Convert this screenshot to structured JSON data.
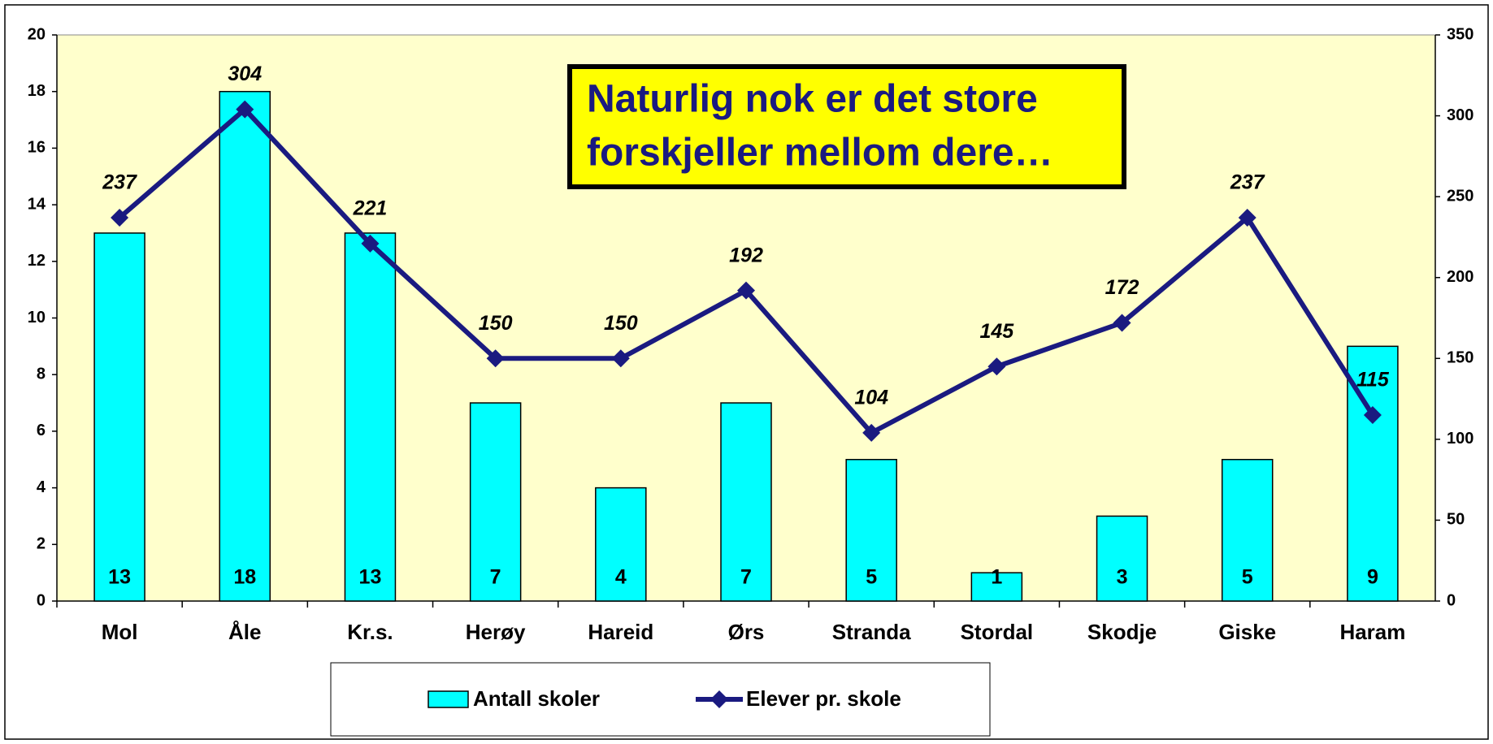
{
  "chart_data": {
    "type": "combo",
    "annotation": [
      "Naturlig nok er det store",
      "forskjeller mellom dere…"
    ],
    "categories": [
      "Mol",
      "Åle",
      "Kr.s.",
      "Herøy",
      "Hareid",
      "Ørs",
      "Stranda",
      "Stordal",
      "Skodje",
      "Giske",
      "Haram"
    ],
    "series": [
      {
        "name": "Antall skoler",
        "type": "bar",
        "axis": "y",
        "color": "#00ffff",
        "values": [
          13,
          18,
          13,
          7,
          4,
          7,
          5,
          1,
          3,
          5,
          9
        ]
      },
      {
        "name": "Elever pr. skole",
        "type": "line",
        "axis": "y2",
        "color": "#1a1a80",
        "values": [
          237,
          304,
          221,
          150,
          150,
          192,
          104,
          145,
          172,
          237,
          115
        ]
      }
    ],
    "ylim": [
      0,
      20
    ],
    "yticks": [
      0,
      2,
      4,
      6,
      8,
      10,
      12,
      14,
      16,
      18,
      20
    ],
    "y2lim": [
      0,
      350
    ],
    "y2ticks": [
      0,
      50,
      100,
      150,
      200,
      250,
      300,
      350
    ],
    "plot_background": "#ffffcc",
    "annotation_background": "#ffff00",
    "annotation_color": "#1a1a80"
  }
}
